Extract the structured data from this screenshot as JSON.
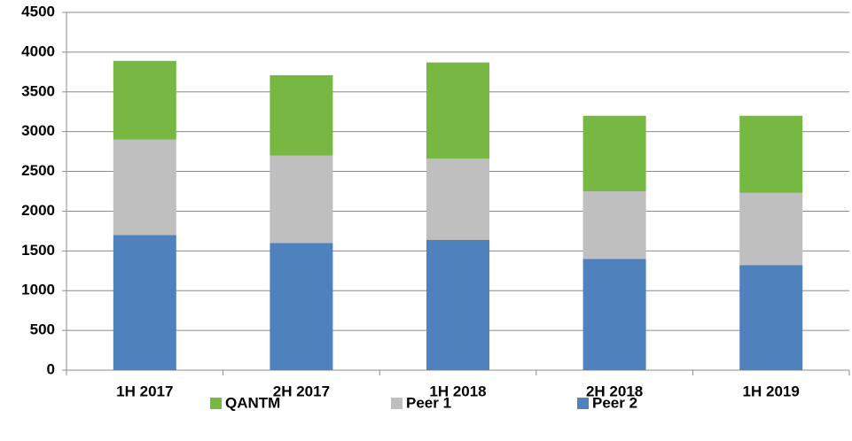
{
  "chart_data": {
    "type": "stacked_bar",
    "categories": [
      "1H 2017",
      "2H 2017",
      "1H 2018",
      "2H 2018",
      "1H 2019"
    ],
    "series": [
      {
        "name": "Peer 2",
        "color": "#4f81bd",
        "values": [
          1700,
          1600,
          1640,
          1400,
          1320
        ]
      },
      {
        "name": "Peer 1",
        "color": "#bfbfbf",
        "values": [
          1200,
          1100,
          1020,
          850,
          910
        ]
      },
      {
        "name": "QANTM",
        "color": "#77b843",
        "values": [
          990,
          1010,
          1210,
          950,
          970
        ]
      }
    ],
    "ylim": [
      0,
      4500
    ],
    "yticks": [
      0,
      500,
      1000,
      1500,
      2000,
      2500,
      3000,
      3500,
      4000,
      4500
    ],
    "grid": true,
    "legend": "bottom"
  }
}
